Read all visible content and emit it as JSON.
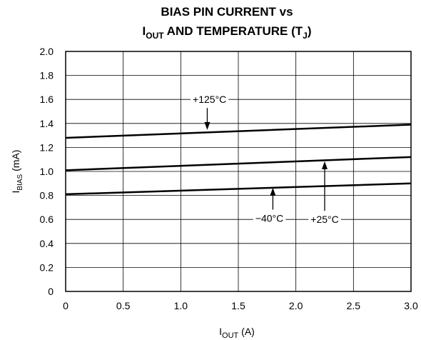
{
  "chart_data": {
    "type": "line",
    "title_line1": "BIAS PIN CURRENT vs",
    "title_line2_main": "I",
    "title_line2_sub": "OUT",
    "title_line2_mid": " AND TEMPERATURE (T",
    "title_line2_sub2": "J",
    "title_line2_end": ")",
    "xlabel_main": "I",
    "xlabel_sub": "OUT",
    "xlabel_unit": " (A)",
    "ylabel_main": "I",
    "ylabel_sub": "BIAS",
    "ylabel_unit": " (mA)",
    "xlim": [
      0,
      3.0
    ],
    "ylim": [
      0,
      2.0
    ],
    "x_ticks": [
      0,
      0.5,
      1.0,
      1.5,
      2.0,
      2.5,
      3.0
    ],
    "x_tick_labels": [
      "0",
      "0.5",
      "1.0",
      "1.5",
      "2.0",
      "2.5",
      "3.0"
    ],
    "y_ticks": [
      0,
      0.2,
      0.4,
      0.6,
      0.8,
      1.0,
      1.2,
      1.4,
      1.6,
      1.8,
      2.0
    ],
    "y_tick_labels": [
      "0",
      "0.2",
      "0.4",
      "0.6",
      "0.8",
      "1.0",
      "1.2",
      "1.4",
      "1.6",
      "1.8",
      "2.0"
    ],
    "grid": true,
    "series": [
      {
        "name": "+125°C",
        "x": [
          0,
          3.0
        ],
        "y": [
          1.28,
          1.39
        ]
      },
      {
        "name": "+25°C",
        "x": [
          0,
          3.0
        ],
        "y": [
          1.01,
          1.12
        ]
      },
      {
        "name": "−40°C",
        "x": [
          0,
          3.0
        ],
        "y": [
          0.81,
          0.9
        ]
      }
    ],
    "annotations": [
      {
        "series": "+125°C",
        "text": "+125°C",
        "label_x": 1.25,
        "label_y": 1.6,
        "arrow_to_x": 1.23,
        "arrow_to_y": 1.34
      },
      {
        "series": "−40°C",
        "text": "−40°C",
        "label_x": 1.77,
        "label_y": 0.61,
        "arrow_to_x": 1.8,
        "arrow_to_y": 0.87
      },
      {
        "series": "+25°C",
        "text": "+25°C",
        "label_x": 2.25,
        "label_y": 0.6,
        "arrow_to_x": 2.25,
        "arrow_to_y": 1.09
      }
    ]
  }
}
